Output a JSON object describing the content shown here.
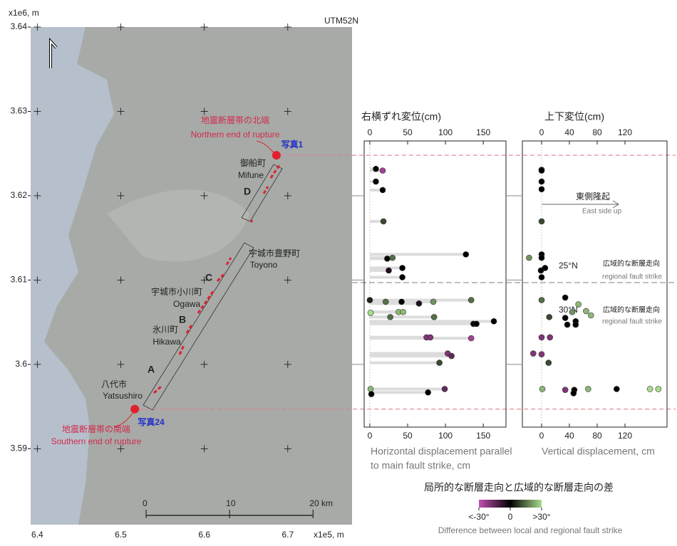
{
  "map": {
    "title": "UTM52N",
    "xlabel": "x1e5, m",
    "ylabel": "x1e6, m",
    "xlim": [
      6.392,
      6.777
    ],
    "ylim": [
      3.581,
      3.64
    ],
    "xticks": [
      6.4,
      6.5,
      6.6,
      6.7
    ],
    "yticks": [
      3.59,
      3.6,
      3.61,
      3.62,
      3.63,
      3.64
    ],
    "ends": {
      "x": [
        6.6864,
        6.5168
      ],
      "y": [
        3.6248,
        3.5947
      ],
      "color": "#e0202f"
    },
    "labels": [
      "地震断層帯の北端",
      "Northern end of rupture",
      "写真1",
      "御船町",
      "Mifune",
      "D",
      "宇城市豊野町",
      "Toyono",
      "C",
      "宇城市小川町",
      "Ogawa",
      "B",
      "氷川町",
      "Hikawa",
      "A",
      "八代市",
      "Yatsushiro",
      "写真24",
      "地震断層帯の南端",
      "Southern end of rupture"
    ],
    "scalebar": [
      0,
      10,
      {
        "value": 20,
        "label": "20 km"
      }
    ]
  },
  "chart_data": [
    {
      "type": "scatter",
      "title": "右横ずれ変位(cm)",
      "xlabel": [
        "Horizontal displacement parallel",
        "to main fault strike, cm"
      ],
      "xlim": [
        -7.5,
        180
      ],
      "xticks": [
        0,
        50,
        100,
        150
      ],
      "ylim": [
        3.5927,
        3.6265
      ],
      "northing": [
        3.6232,
        3.623,
        3.6217,
        3.6207,
        3.617,
        3.6131,
        3.6126,
        3.6127,
        3.6112,
        3.6115,
        3.6104,
        3.6077,
        3.6075,
        3.6075,
        3.6073,
        3.6075,
        3.6077,
        3.6062,
        3.6063,
        3.6063,
        3.6057,
        3.6057,
        3.6052,
        3.6049,
        3.6049,
        3.6033,
        3.6033,
        3.6032,
        3.6014,
        3.6011,
        3.6003,
        3.5972,
        3.5972,
        3.5966,
        3.5968
      ],
      "values": [
        8,
        17,
        8,
        17,
        18,
        127,
        23,
        30,
        25,
        43,
        43,
        0,
        21,
        42,
        65,
        84,
        134,
        1,
        38,
        44,
        27,
        85,
        164,
        137,
        141,
        75,
        80,
        134,
        103,
        108,
        92,
        1,
        99,
        2,
        77
      ],
      "diff": [
        0,
        -25,
        0,
        0,
        10,
        0,
        0,
        15,
        -5,
        0,
        0,
        5,
        15,
        0,
        -5,
        20,
        15,
        30,
        25,
        25,
        15,
        15,
        0,
        0,
        0,
        -20,
        -20,
        -25,
        -20,
        -15,
        10,
        25,
        -15,
        0,
        0
      ],
      "bars": true
    },
    {
      "type": "scatter",
      "title": "上下変位(cm)",
      "xlabel": [
        "Vertical displacement, cm"
      ],
      "xlim": [
        -27.7,
        180.5
      ],
      "xticks": [
        0,
        40,
        80,
        120
      ],
      "ylim": [
        3.5927,
        3.6265
      ],
      "northing": [
        3.6231,
        3.623,
        3.6217,
        3.6208,
        3.617,
        3.6127,
        3.6131,
        3.6127,
        3.6115,
        3.6112,
        3.6104,
        3.6077,
        3.608,
        3.6072,
        3.6063,
        3.6057,
        3.6064,
        3.6059,
        3.6056,
        3.6052,
        3.6048,
        3.6048,
        3.6033,
        3.6033,
        3.6014,
        3.6013,
        3.6003,
        3.5972,
        3.5971,
        3.5971,
        3.5967,
        3.5972,
        3.5972,
        3.5972,
        3.5972
      ],
      "values": [
        0,
        0,
        0,
        0,
        0,
        -18,
        0,
        0,
        5,
        -1,
        0,
        0,
        34,
        53,
        44,
        11,
        64,
        71,
        34,
        49,
        49,
        37,
        0,
        12,
        -12,
        0,
        10,
        1,
        34,
        47,
        46,
        67,
        108,
        156,
        168
      ],
      "diff": [
        -10,
        0,
        0,
        0,
        10,
        20,
        0,
        0,
        0,
        0,
        0,
        15,
        0,
        25,
        20,
        10,
        25,
        25,
        0,
        0,
        0,
        0,
        -20,
        -20,
        -20,
        -20,
        10,
        25,
        -20,
        0,
        0,
        25,
        0,
        30,
        30
      ],
      "bars": false
    }
  ],
  "annotations": {
    "uplift": "東側隆起",
    "uplift_en": "East side up",
    "north_angle": "25°N",
    "south_angle": "30°N",
    "strike_jp": "広域的な断層走向",
    "strike_en": "regional fault strike",
    "boundary": 3.6097
  },
  "colorbar": {
    "title": "局所的な断層走向と広域的な断層走向の差",
    "subtitle": "Difference between local and regional fault strike",
    "lim": [
      -30,
      30
    ],
    "ticks": [
      {
        "value": -30,
        "label": "<-30°"
      },
      0,
      {
        "value": 30,
        "label": ">30°"
      }
    ],
    "colors": [
      "#c24fb2",
      "#000000",
      "#a9dc8c"
    ]
  }
}
